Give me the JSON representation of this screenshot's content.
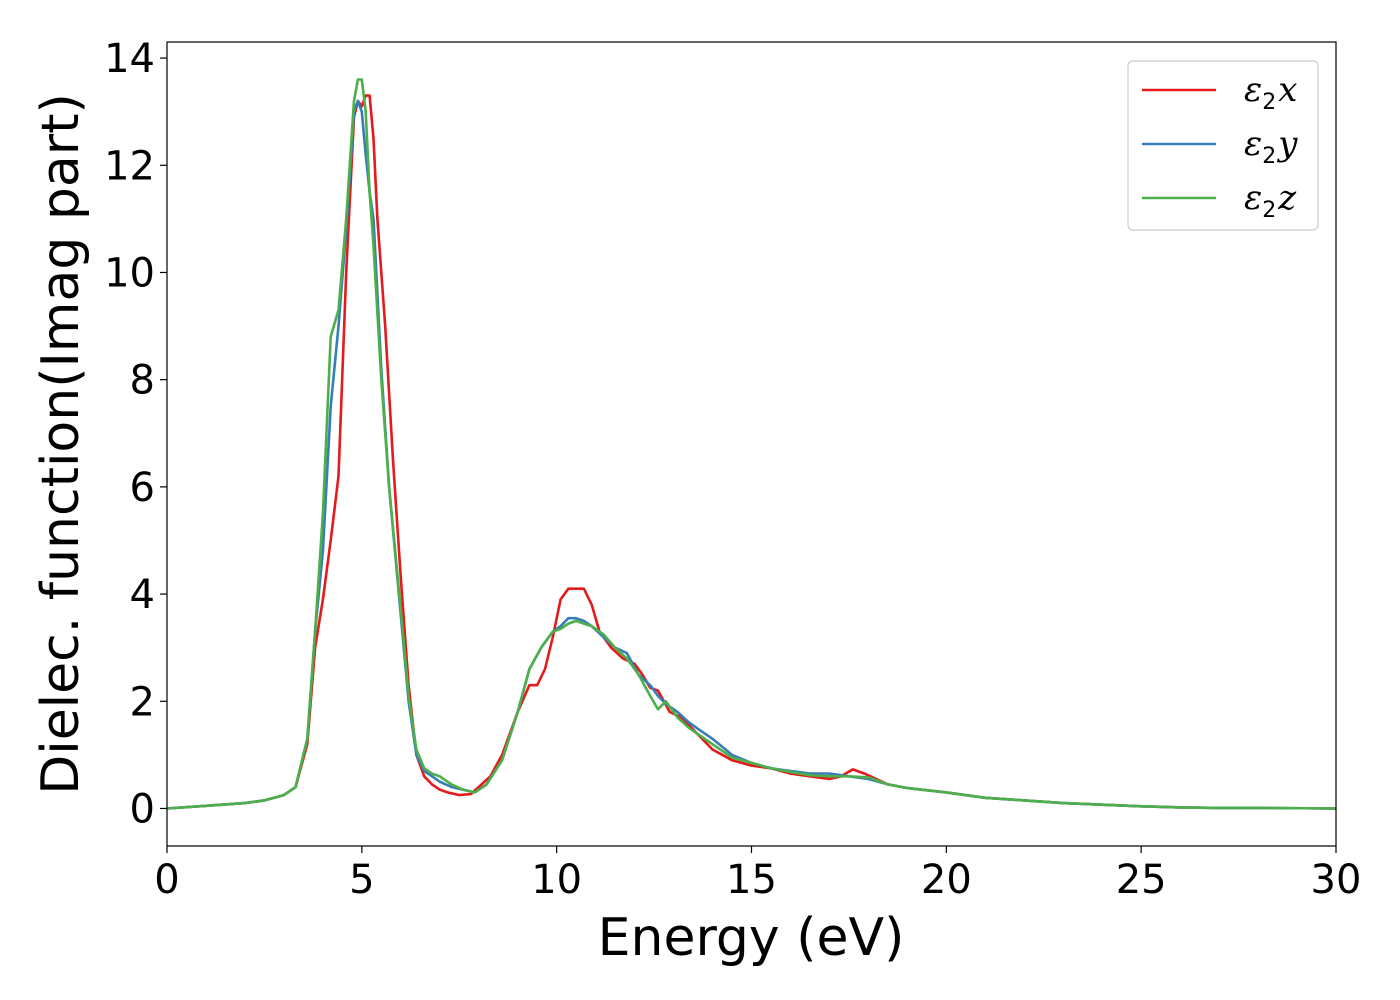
{
  "chart_data": {
    "type": "line",
    "xlabel": "Energy (eV)",
    "ylabel": "Dielec. function(Imag part)",
    "xlim": [
      0,
      30
    ],
    "ylim": [
      -0.7,
      14.3
    ],
    "xticks": [
      "0",
      "5",
      "10",
      "15",
      "20",
      "25",
      "30"
    ],
    "yticks": [
      "0",
      "2",
      "4",
      "6",
      "8",
      "10",
      "12",
      "14"
    ],
    "legend_position": "top-right",
    "grid": false,
    "series": [
      {
        "name": "ε2x",
        "name_base": "ε",
        "name_sub": "2",
        "name_suffix": "x",
        "color": "#e41a1c",
        "x": [
          0,
          1,
          2,
          2.5,
          3,
          3.3,
          3.6,
          3.8,
          4.0,
          4.2,
          4.4,
          4.6,
          4.8,
          4.9,
          5.0,
          5.1,
          5.2,
          5.3,
          5.4,
          5.6,
          5.8,
          6.0,
          6.2,
          6.4,
          6.6,
          6.8,
          7.0,
          7.2,
          7.5,
          7.8,
          8.0,
          8.3,
          8.6,
          9.0,
          9.3,
          9.5,
          9.7,
          9.9,
          10.1,
          10.3,
          10.5,
          10.7,
          10.9,
          11.1,
          11.4,
          11.7,
          12.0,
          12.2,
          12.4,
          12.6,
          12.9,
          13.2,
          13.6,
          14.0,
          14.5,
          15.0,
          15.5,
          16.0,
          16.5,
          17.0,
          17.3,
          17.6,
          17.9,
          18.5,
          19.0,
          20.0,
          21.0,
          22.0,
          23.0,
          24.0,
          25.0,
          26.0,
          27.0,
          28.0,
          30.0
        ],
        "values": [
          0,
          0.05,
          0.1,
          0.15,
          0.25,
          0.4,
          1.2,
          3.0,
          3.9,
          5.0,
          6.2,
          10.0,
          12.9,
          13.2,
          13.1,
          13.3,
          13.3,
          12.5,
          11.0,
          9.0,
          6.5,
          4.3,
          2.3,
          1.0,
          0.6,
          0.45,
          0.35,
          0.3,
          0.25,
          0.27,
          0.4,
          0.6,
          1.0,
          1.8,
          2.3,
          2.3,
          2.6,
          3.2,
          3.9,
          4.1,
          4.1,
          4.1,
          3.8,
          3.3,
          3.0,
          2.8,
          2.7,
          2.5,
          2.25,
          2.2,
          1.8,
          1.7,
          1.4,
          1.1,
          0.9,
          0.8,
          0.75,
          0.65,
          0.6,
          0.55,
          0.6,
          0.73,
          0.65,
          0.45,
          0.38,
          0.3,
          0.2,
          0.15,
          0.1,
          0.07,
          0.04,
          0.02,
          0.01,
          0.01,
          0.0
        ]
      },
      {
        "name": "ε2y",
        "name_base": "ε",
        "name_sub": "2",
        "name_suffix": "y",
        "color": "#377eb8",
        "x": [
          0,
          1,
          2,
          2.5,
          3,
          3.3,
          3.6,
          3.8,
          4.0,
          4.2,
          4.4,
          4.6,
          4.8,
          4.9,
          5.0,
          5.1,
          5.2,
          5.3,
          5.5,
          5.7,
          6.0,
          6.2,
          6.4,
          6.6,
          6.8,
          7.0,
          7.3,
          7.6,
          7.9,
          8.2,
          8.6,
          9.0,
          9.3,
          9.6,
          9.9,
          10.1,
          10.3,
          10.5,
          10.7,
          10.9,
          11.2,
          11.5,
          11.8,
          12.1,
          12.4,
          12.6,
          12.8,
          13.1,
          13.4,
          13.7,
          14.0,
          14.5,
          15.0,
          15.5,
          16.0,
          16.5,
          17.0,
          17.5,
          18.0,
          18.5,
          19.0,
          20.0,
          21.0,
          22.0,
          23.0,
          24.0,
          25.0,
          26.0,
          27.0,
          28.0,
          30.0
        ],
        "values": [
          0,
          0.05,
          0.1,
          0.15,
          0.25,
          0.4,
          1.3,
          3.3,
          4.8,
          7.5,
          9.0,
          10.8,
          13.0,
          13.2,
          13.0,
          12.2,
          11.5,
          11.0,
          8.2,
          6.0,
          3.6,
          2.0,
          1.0,
          0.7,
          0.6,
          0.5,
          0.4,
          0.35,
          0.3,
          0.45,
          0.9,
          1.8,
          2.6,
          3.0,
          3.3,
          3.4,
          3.55,
          3.55,
          3.5,
          3.4,
          3.2,
          3.0,
          2.9,
          2.5,
          2.3,
          2.1,
          1.95,
          1.8,
          1.6,
          1.45,
          1.3,
          1.0,
          0.85,
          0.75,
          0.7,
          0.65,
          0.65,
          0.6,
          0.55,
          0.45,
          0.38,
          0.3,
          0.2,
          0.15,
          0.1,
          0.07,
          0.04,
          0.02,
          0.01,
          0.01,
          0.0
        ]
      },
      {
        "name": "ε2z",
        "name_base": "ε",
        "name_sub": "2",
        "name_suffix": "z",
        "color": "#4daf4a",
        "x": [
          0,
          1,
          2,
          2.5,
          3,
          3.3,
          3.6,
          3.8,
          4.0,
          4.2,
          4.4,
          4.6,
          4.8,
          4.9,
          5.0,
          5.1,
          5.2,
          5.3,
          5.5,
          5.7,
          6.0,
          6.2,
          6.4,
          6.6,
          6.8,
          7.0,
          7.3,
          7.6,
          7.9,
          8.2,
          8.6,
          9.0,
          9.3,
          9.6,
          9.9,
          10.1,
          10.3,
          10.5,
          10.7,
          10.9,
          11.2,
          11.5,
          11.8,
          12.1,
          12.4,
          12.6,
          12.8,
          13.1,
          13.4,
          13.7,
          14.0,
          14.5,
          15.0,
          15.5,
          16.0,
          16.5,
          17.0,
          17.5,
          18.0,
          18.5,
          19.0,
          20.0,
          21.0,
          22.0,
          23.0,
          24.0,
          25.0,
          26.0,
          27.0,
          28.0,
          30.0
        ],
        "values": [
          0,
          0.05,
          0.1,
          0.15,
          0.25,
          0.4,
          1.3,
          3.3,
          5.5,
          8.8,
          9.3,
          11.0,
          13.2,
          13.6,
          13.6,
          13.0,
          11.5,
          10.5,
          8.0,
          6.0,
          3.7,
          2.1,
          1.1,
          0.75,
          0.65,
          0.6,
          0.45,
          0.35,
          0.3,
          0.45,
          0.9,
          1.8,
          2.6,
          3.0,
          3.3,
          3.35,
          3.45,
          3.5,
          3.45,
          3.4,
          3.25,
          3.0,
          2.8,
          2.5,
          2.1,
          1.85,
          2.0,
          1.7,
          1.5,
          1.35,
          1.2,
          0.95,
          0.85,
          0.75,
          0.68,
          0.62,
          0.6,
          0.6,
          0.58,
          0.45,
          0.38,
          0.3,
          0.2,
          0.15,
          0.1,
          0.07,
          0.04,
          0.02,
          0.01,
          0.01,
          0.0
        ]
      }
    ]
  }
}
